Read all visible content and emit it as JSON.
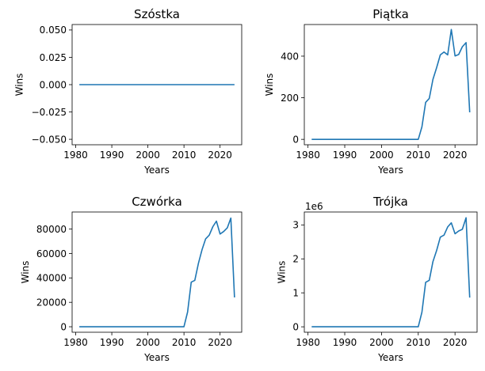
{
  "series_color": "#1f77b4",
  "chart_data": [
    {
      "type": "line",
      "title": "Szóstka",
      "xlabel": "Years",
      "ylabel": "Wins",
      "xlim": [
        1979,
        2026
      ],
      "ylim": [
        -0.055,
        0.055
      ],
      "xticks": [
        1980,
        1990,
        2000,
        2010,
        2020
      ],
      "xtick_labels": [
        "1980",
        "1990",
        "2000",
        "2010",
        "2020"
      ],
      "yticks": [
        -0.05,
        -0.025,
        0,
        0.025,
        0.05
      ],
      "ytick_labels": [
        "−0.050",
        "−0.025",
        "0.000",
        "0.025",
        "0.050"
      ],
      "offset_label": "",
      "grid": false,
      "x": [
        1981,
        2024
      ],
      "values": [
        0,
        0
      ]
    },
    {
      "type": "line",
      "title": "Piątka",
      "xlabel": "Years",
      "ylabel": "Wins",
      "xlim": [
        1979,
        2026
      ],
      "ylim": [
        -26,
        552
      ],
      "xticks": [
        1980,
        1990,
        2000,
        2010,
        2020
      ],
      "xtick_labels": [
        "1980",
        "1990",
        "2000",
        "2010",
        "2020"
      ],
      "yticks": [
        0,
        200,
        400
      ],
      "ytick_labels": [
        "0",
        "200",
        "400"
      ],
      "offset_label": "",
      "grid": false,
      "x": [
        1981,
        2010,
        2011,
        2012,
        2013,
        2014,
        2015,
        2016,
        2017,
        2018,
        2019,
        2020,
        2021,
        2022,
        2023,
        2024
      ],
      "values": [
        0,
        0,
        60,
        178,
        197,
        288,
        345,
        406,
        420,
        406,
        528,
        401,
        408,
        445,
        465,
        130
      ]
    },
    {
      "type": "line",
      "title": "Czwórka",
      "xlabel": "Years",
      "ylabel": "Wins",
      "xlim": [
        1979,
        2026
      ],
      "ylim": [
        -4500,
        94000
      ],
      "xticks": [
        1980,
        1990,
        2000,
        2010,
        2020
      ],
      "xtick_labels": [
        "1980",
        "1990",
        "2000",
        "2010",
        "2020"
      ],
      "yticks": [
        0,
        20000,
        40000,
        60000,
        80000
      ],
      "ytick_labels": [
        "0",
        "20000",
        "40000",
        "60000",
        "80000"
      ],
      "offset_label": "",
      "grid": false,
      "x": [
        1981,
        2010,
        2011,
        2012,
        2013,
        2014,
        2015,
        2016,
        2017,
        2018,
        2019,
        2020,
        2021,
        2022,
        2023,
        2024
      ],
      "values": [
        0,
        0,
        12000,
        36500,
        38000,
        52000,
        63000,
        72000,
        75000,
        82000,
        86500,
        76000,
        78000,
        81000,
        89000,
        24000
      ]
    },
    {
      "type": "line",
      "title": "Trójka",
      "xlabel": "Years",
      "ylabel": "Wins",
      "xlim": [
        1979,
        2026
      ],
      "ylim": [
        -160000,
        3380000
      ],
      "xticks": [
        1980,
        1990,
        2000,
        2010,
        2020
      ],
      "xtick_labels": [
        "1980",
        "1990",
        "2000",
        "2010",
        "2020"
      ],
      "yticks": [
        0,
        1000000,
        2000000,
        3000000
      ],
      "ytick_labels": [
        "0",
        "1",
        "2",
        "3"
      ],
      "offset_label": "1e6",
      "grid": false,
      "x": [
        1981,
        2010,
        2011,
        2012,
        2013,
        2014,
        2015,
        2016,
        2017,
        2018,
        2019,
        2020,
        2021,
        2022,
        2023,
        2024
      ],
      "values": [
        0,
        0,
        430000,
        1310000,
        1370000,
        1920000,
        2250000,
        2640000,
        2700000,
        2940000,
        3060000,
        2740000,
        2820000,
        2870000,
        3210000,
        860000
      ]
    }
  ]
}
